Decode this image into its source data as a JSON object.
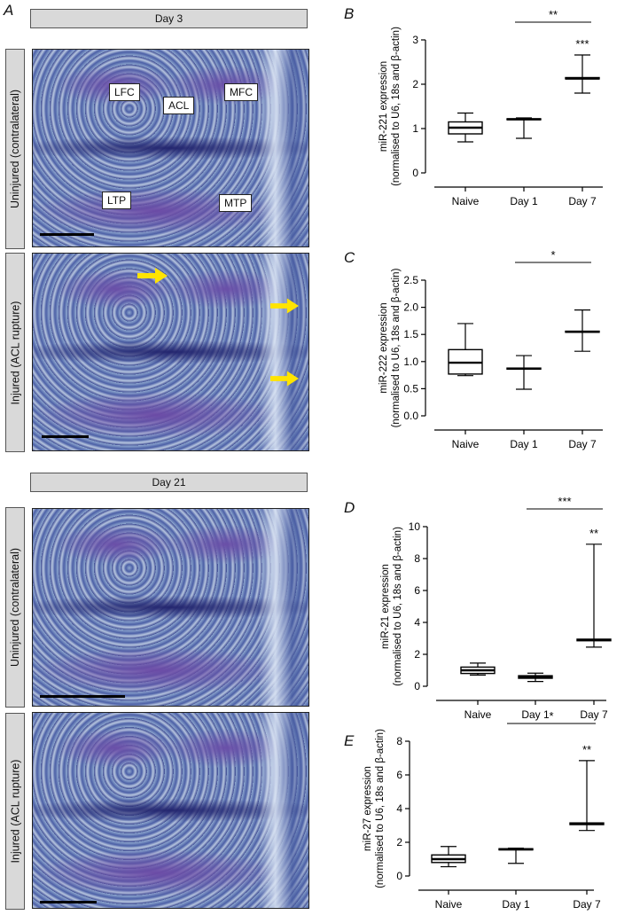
{
  "panel_letters": {
    "a": "A",
    "b": "B",
    "c": "C",
    "d": "D",
    "e": "E"
  },
  "day3_banner": "Day 3",
  "day21_banner": "Day 21",
  "label_uninjured": "Uninjured (contralateral)",
  "label_injured": "Injured (ACL rupture)",
  "anatomy_labels": {
    "lfc": "LFC",
    "acl": "ACL",
    "mfc": "MFC",
    "ltp": "LTP",
    "mtp": "MTP"
  },
  "colors": {
    "arrow": "#ffe400",
    "stain_dark": "#23256e",
    "stain_light": "#8fa8cf"
  },
  "chart_data": [
    {
      "id": "b",
      "type": "boxplot",
      "ylabel": "miR-221 expression\n(normalised to U6, 18s and β-actin)",
      "categories": [
        "Naive",
        "Day 1",
        "Day 7"
      ],
      "ylim": [
        0,
        3
      ],
      "yticks": [
        0,
        1,
        2,
        3
      ],
      "ytick_labels": [
        "0",
        "1",
        "2",
        "3"
      ],
      "boxes": [
        {
          "min": 0.7,
          "q1": 0.88,
          "median": 1.02,
          "q3": 1.15,
          "max": 1.35
        },
        {
          "min": 0.78,
          "q1": 1.2,
          "median": 1.21,
          "q3": 1.22,
          "max": 1.24
        },
        {
          "min": 1.8,
          "q1": 2.12,
          "median": 2.13,
          "q3": 2.15,
          "max": 2.66
        }
      ],
      "sig_bracket": {
        "from": 1,
        "to": 2,
        "label": "**"
      },
      "sig_stars": [
        {
          "index": 2,
          "label": "***"
        }
      ]
    },
    {
      "id": "c",
      "type": "boxplot",
      "ylabel": "miR-222 expression\n(normalised to U6, 18s and β-actin)",
      "categories": [
        "Naive",
        "Day 1",
        "Day 7"
      ],
      "ylim": [
        0,
        2.5
      ],
      "yticks": [
        0,
        0.5,
        1,
        1.5,
        2,
        2.5
      ],
      "ytick_labels": [
        "0.0",
        "0.5",
        "1.0",
        "1.5",
        "2.0",
        "2.5"
      ],
      "boxes": [
        {
          "min": 0.74,
          "q1": 0.77,
          "median": 0.98,
          "q3": 1.22,
          "max": 1.7
        },
        {
          "min": 0.49,
          "q1": 0.86,
          "median": 0.87,
          "q3": 0.88,
          "max": 1.11
        },
        {
          "min": 1.19,
          "q1": 1.54,
          "median": 1.55,
          "q3": 1.56,
          "max": 1.95
        }
      ],
      "sig_bracket": {
        "from": 1,
        "to": 2,
        "label": "*"
      },
      "sig_stars": []
    },
    {
      "id": "d",
      "type": "boxplot",
      "ylabel": "miR-21 expression\n(normalised to U6, 18s and β-actin)",
      "categories": [
        "Naive",
        "Day 1",
        "Day 7"
      ],
      "ylim": [
        0,
        10
      ],
      "yticks": [
        0,
        2,
        4,
        6,
        8,
        10
      ],
      "ytick_labels": [
        "0",
        "2",
        "4",
        "6",
        "8",
        "10"
      ],
      "boxes": [
        {
          "min": 0.7,
          "q1": 0.8,
          "median": 1.0,
          "q3": 1.2,
          "max": 1.45
        },
        {
          "min": 0.3,
          "q1": 0.5,
          "median": 0.58,
          "q3": 0.66,
          "max": 0.82
        },
        {
          "min": 2.45,
          "q1": 2.85,
          "median": 2.9,
          "q3": 2.95,
          "max": 8.9
        }
      ],
      "sig_bracket": {
        "from": 1,
        "to": 2,
        "label": "***"
      },
      "sig_stars": [
        {
          "index": 2,
          "label": "**"
        }
      ]
    },
    {
      "id": "e",
      "type": "boxplot",
      "ylabel": "miR-27 expression\n(normalised to U6, 18s and β-actin)",
      "categories": [
        "Naive",
        "Day 1",
        "Day 7"
      ],
      "ylim": [
        0,
        8
      ],
      "yticks": [
        0,
        2,
        4,
        6,
        8
      ],
      "ytick_labels": [
        "0",
        "2",
        "4",
        "6",
        "8"
      ],
      "boxes": [
        {
          "min": 0.55,
          "q1": 0.8,
          "median": 1.0,
          "q3": 1.25,
          "max": 1.75
        },
        {
          "min": 0.75,
          "q1": 1.55,
          "median": 1.58,
          "q3": 1.62,
          "max": 1.65
        },
        {
          "min": 2.7,
          "q1": 3.05,
          "median": 3.1,
          "q3": 3.15,
          "max": 6.85
        }
      ],
      "sig_bracket": {
        "from": 1,
        "to": 2,
        "label": "*"
      },
      "sig_stars": [
        {
          "index": 2,
          "label": "**"
        }
      ]
    }
  ]
}
